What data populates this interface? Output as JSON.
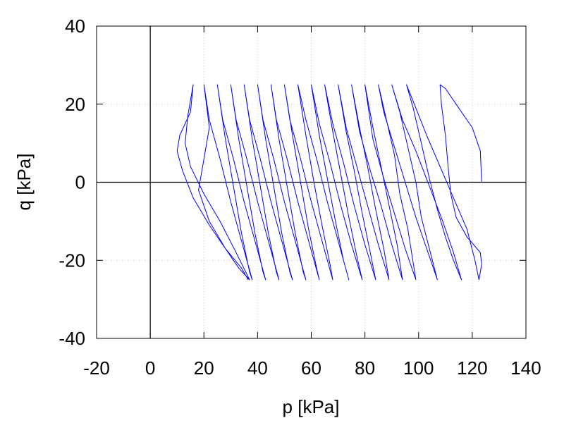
{
  "chart_data": {
    "type": "line",
    "xlabel": "p [kPa]",
    "ylabel": "q [kPa]",
    "xlim": [
      -20,
      140
    ],
    "ylim": [
      -40,
      40
    ],
    "x_ticks": [
      -20,
      0,
      20,
      40,
      60,
      80,
      100,
      120,
      140
    ],
    "y_ticks": [
      -40,
      -20,
      0,
      20,
      40
    ],
    "grid": true,
    "zero_lines": true,
    "series_color": "#0000ff",
    "cycle_amplitude_q": 25,
    "series": [
      {
        "values_description_not_shown": "",
        "points": [
          [
            123.5,
            0
          ],
          [
            123,
            8
          ],
          [
            120,
            14
          ],
          [
            115,
            19
          ],
          [
            110,
            24
          ],
          [
            108,
            25
          ],
          [
            108.5,
            20
          ],
          [
            110,
            12
          ],
          [
            111,
            4
          ],
          [
            112,
            -3
          ],
          [
            114,
            -9
          ],
          [
            118,
            -14
          ],
          [
            123,
            -18
          ],
          [
            123.5,
            -21
          ],
          [
            122.5,
            -25
          ],
          [
            121,
            -20
          ],
          [
            118,
            -12
          ],
          [
            113,
            -4
          ],
          [
            108,
            4
          ],
          [
            103,
            12
          ],
          [
            99,
            19
          ],
          [
            95.5,
            25
          ],
          [
            98,
            19
          ],
          [
            101,
            10
          ],
          [
            104,
            1
          ],
          [
            107,
            -7
          ],
          [
            110,
            -14
          ],
          [
            113,
            -20
          ],
          [
            116,
            -25
          ],
          [
            113,
            -18
          ],
          [
            109,
            -10
          ],
          [
            104,
            -1
          ],
          [
            99,
            8
          ],
          [
            94,
            16
          ],
          [
            90,
            25
          ],
          [
            93,
            18
          ],
          [
            96,
            9
          ],
          [
            99,
            0
          ],
          [
            101,
            -9
          ],
          [
            104,
            -17
          ],
          [
            107,
            -25
          ],
          [
            103,
            -17
          ],
          [
            99,
            -9
          ],
          [
            95,
            0
          ],
          [
            91,
            9
          ],
          [
            87,
            18
          ],
          [
            85,
            25
          ],
          [
            88,
            16
          ],
          [
            91,
            7
          ],
          [
            93,
            -3
          ],
          [
            96,
            -12
          ],
          [
            99,
            -25
          ],
          [
            95,
            -17
          ],
          [
            91,
            -8
          ],
          [
            87,
            1
          ],
          [
            83,
            11
          ],
          [
            80,
            25
          ],
          [
            83,
            14
          ],
          [
            86,
            4
          ],
          [
            89,
            -6
          ],
          [
            92,
            -16
          ],
          [
            94,
            -25
          ],
          [
            90,
            -16
          ],
          [
            86,
            -6
          ],
          [
            82,
            3
          ],
          [
            78,
            13
          ],
          [
            75,
            25
          ],
          [
            78,
            14
          ],
          [
            81,
            4
          ],
          [
            84,
            -7
          ],
          [
            87,
            -17
          ],
          [
            89,
            -25
          ],
          [
            85,
            -16
          ],
          [
            81,
            -6
          ],
          [
            77,
            4
          ],
          [
            73,
            14
          ],
          [
            70,
            25
          ],
          [
            73,
            13
          ],
          [
            76,
            3
          ],
          [
            79,
            -8
          ],
          [
            82,
            -18
          ],
          [
            84,
            -25
          ],
          [
            80,
            -16
          ],
          [
            76,
            -6
          ],
          [
            72,
            5
          ],
          [
            68,
            15
          ],
          [
            65,
            25
          ],
          [
            68,
            13
          ],
          [
            71,
            2
          ],
          [
            74,
            -9
          ],
          [
            77,
            -19
          ],
          [
            79,
            -25
          ],
          [
            75,
            -16
          ],
          [
            71,
            -6
          ],
          [
            67,
            5
          ],
          [
            63,
            15
          ],
          [
            60,
            25
          ],
          [
            63,
            12
          ],
          [
            66,
            1
          ],
          [
            69,
            -10
          ],
          [
            72,
            -20
          ],
          [
            74,
            -25
          ],
          [
            70,
            -15
          ],
          [
            66,
            -5
          ],
          [
            62,
            6
          ],
          [
            58,
            16
          ],
          [
            55,
            25
          ],
          [
            58,
            12
          ],
          [
            61,
            0
          ],
          [
            64,
            -11
          ],
          [
            67,
            -21
          ],
          [
            68,
            -25
          ],
          [
            64,
            -15
          ],
          [
            60,
            -5
          ],
          [
            56,
            6
          ],
          [
            52,
            16
          ],
          [
            50,
            25
          ],
          [
            53,
            12
          ],
          [
            56,
            0
          ],
          [
            59,
            -12
          ],
          [
            62,
            -22
          ],
          [
            63,
            -25
          ],
          [
            59,
            -15
          ],
          [
            55,
            -5
          ],
          [
            51,
            6
          ],
          [
            47,
            16
          ],
          [
            45,
            25
          ],
          [
            48,
            11
          ],
          [
            51,
            -1
          ],
          [
            54,
            -13
          ],
          [
            57,
            -23
          ],
          [
            58,
            -25
          ],
          [
            54,
            -15
          ],
          [
            50,
            -5
          ],
          [
            46,
            6
          ],
          [
            42,
            16
          ],
          [
            40,
            25
          ],
          [
            43,
            11
          ],
          [
            46,
            -1
          ],
          [
            49,
            -13
          ],
          [
            52,
            -23
          ],
          [
            53,
            -25
          ],
          [
            49,
            -15
          ],
          [
            45,
            -5
          ],
          [
            41,
            6
          ],
          [
            37,
            16
          ],
          [
            35,
            25
          ],
          [
            38,
            11
          ],
          [
            41,
            -1
          ],
          [
            44,
            -13
          ],
          [
            47,
            -23
          ],
          [
            48,
            -25
          ],
          [
            44,
            -15
          ],
          [
            40,
            -5
          ],
          [
            36,
            6
          ],
          [
            32,
            16
          ],
          [
            30,
            25
          ],
          [
            33,
            11
          ],
          [
            36,
            -1
          ],
          [
            39,
            -13
          ],
          [
            42,
            -23
          ],
          [
            43,
            -25
          ],
          [
            39,
            -15
          ],
          [
            35,
            -5
          ],
          [
            31,
            6
          ],
          [
            27,
            16
          ],
          [
            25,
            25
          ],
          [
            28,
            11
          ],
          [
            31,
            -1
          ],
          [
            34,
            -13
          ],
          [
            37,
            -23
          ],
          [
            38,
            -25
          ],
          [
            34,
            -15
          ],
          [
            30,
            -5
          ],
          [
            26,
            6
          ],
          [
            22,
            16
          ],
          [
            20,
            25
          ],
          [
            22,
            14
          ],
          [
            20,
            6
          ],
          [
            18,
            -2
          ],
          [
            22,
            -10
          ],
          [
            28,
            -17
          ],
          [
            33,
            -22
          ],
          [
            37,
            -25
          ],
          [
            32,
            -18
          ],
          [
            26,
            -10
          ],
          [
            20,
            -3
          ],
          [
            15,
            4
          ],
          [
            13,
            10
          ],
          [
            14,
            17
          ],
          [
            16,
            25
          ],
          [
            15,
            18
          ],
          [
            11,
            12
          ],
          [
            10,
            8
          ],
          [
            12,
            3
          ],
          [
            16,
            -4
          ],
          [
            22,
            -11
          ],
          [
            28,
            -17
          ],
          [
            34,
            -22
          ],
          [
            36.5,
            -25
          ]
        ]
      }
    ]
  }
}
